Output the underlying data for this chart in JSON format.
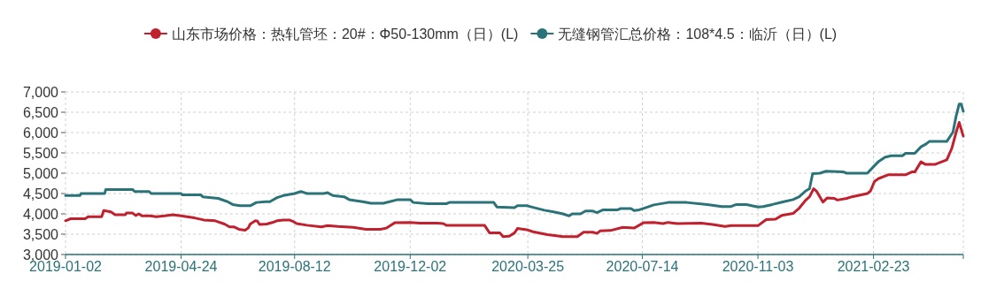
{
  "chart_data": {
    "type": "line",
    "legend": "top",
    "grid": true,
    "line_style": "solid",
    "xlim": [
      "2019-01-02",
      "2021-05-21"
    ],
    "xticks": [
      {
        "value": "2019-01-02",
        "label": "2019-01-02"
      },
      {
        "value": "2019-04-24",
        "label": "2019-04-24"
      },
      {
        "value": "2019-08-12",
        "label": "2019-08-12"
      },
      {
        "value": "2019-12-02",
        "label": "2019-12-02"
      },
      {
        "value": "2020-03-25",
        "label": "2020-03-25"
      },
      {
        "value": "2020-07-14",
        "label": "2020-07-14"
      },
      {
        "value": "2020-11-03",
        "label": "2020-11-03"
      },
      {
        "value": "2021-02-23",
        "label": "2021-02-23"
      }
    ],
    "ylim": [
      3000,
      7000
    ],
    "yticks": [
      {
        "value": 3000,
        "label": "3,000"
      },
      {
        "value": 3500,
        "label": "3,500"
      },
      {
        "value": 4000,
        "label": "4,000"
      },
      {
        "value": 4500,
        "label": "4,500"
      },
      {
        "value": 5000,
        "label": "5,000"
      },
      {
        "value": 5500,
        "label": "5,500"
      },
      {
        "value": 6000,
        "label": "6,000"
      },
      {
        "value": 6500,
        "label": "6,500"
      },
      {
        "value": 7000,
        "label": "7,000"
      }
    ],
    "series": [
      {
        "name": "山东市场价格：热轧管坯：20#：Φ50-130mm（日）(L)",
        "color": "#c0212e",
        "x": [
          "2019-01-02",
          "2019-01-07",
          "2019-01-21",
          "2019-01-24",
          "2019-02-06",
          "2019-02-08",
          "2019-02-15",
          "2019-02-19",
          "2019-03-01",
          "2019-03-02",
          "2019-03-08",
          "2019-03-11",
          "2019-03-14",
          "2019-03-17",
          "2019-03-25",
          "2019-03-31",
          "2019-04-08",
          "2019-04-16",
          "2019-04-24",
          "2019-05-07",
          "2019-05-16",
          "2019-05-27",
          "2019-06-05",
          "2019-06-10",
          "2019-06-14",
          "2019-06-19",
          "2019-06-25",
          "2019-06-28",
          "2019-06-30",
          "2019-07-05",
          "2019-07-07",
          "2019-07-09",
          "2019-07-16",
          "2019-07-23",
          "2019-07-26",
          "2019-08-01",
          "2019-08-07",
          "2019-08-10",
          "2019-08-14",
          "2019-08-24",
          "2019-09-07",
          "2019-09-13",
          "2019-09-23",
          "2019-10-08",
          "2019-10-20",
          "2019-11-03",
          "2019-11-09",
          "2019-11-17",
          "2019-12-02",
          "2019-12-11",
          "2019-12-28",
          "2020-01-03",
          "2020-01-06",
          "2020-02-12",
          "2020-02-17",
          "2020-02-27",
          "2020-03-01",
          "2020-03-07",
          "2020-03-12",
          "2020-03-15",
          "2020-03-24",
          "2020-03-30",
          "2020-04-13",
          "2020-04-28",
          "2020-05-12",
          "2020-05-18",
          "2020-05-27",
          "2020-05-31",
          "2020-06-03",
          "2020-06-13",
          "2020-06-25",
          "2020-07-06",
          "2020-07-15",
          "2020-07-25",
          "2020-08-03",
          "2020-08-08",
          "2020-08-17",
          "2020-09-09",
          "2020-09-20",
          "2020-10-02",
          "2020-10-08",
          "2020-11-03",
          "2020-11-11",
          "2020-11-20",
          "2020-11-26",
          "2020-12-07",
          "2020-12-13",
          "2020-12-19",
          "2020-12-23",
          "2020-12-27",
          "2020-12-30",
          "2021-01-05",
          "2021-01-09",
          "2021-01-16",
          "2021-01-19",
          "2021-01-28",
          "2021-02-02",
          "2021-02-17",
          "2021-02-20",
          "2021-02-24",
          "2021-02-28",
          "2021-03-09",
          "2021-03-26",
          "2021-04-01",
          "2021-04-04",
          "2021-04-10",
          "2021-04-14",
          "2021-04-24",
          "2021-05-05",
          "2021-05-10",
          "2021-05-14",
          "2021-05-17",
          "2021-05-21"
        ],
        "values": [
          3830,
          3880,
          3880,
          3930,
          3930,
          4080,
          4050,
          3980,
          3980,
          4020,
          4020,
          3960,
          4000,
          3950,
          3950,
          3930,
          3950,
          3980,
          3950,
          3900,
          3850,
          3830,
          3750,
          3680,
          3680,
          3620,
          3600,
          3650,
          3750,
          3830,
          3820,
          3740,
          3750,
          3800,
          3830,
          3850,
          3850,
          3820,
          3760,
          3720,
          3680,
          3710,
          3690,
          3670,
          3620,
          3620,
          3650,
          3780,
          3790,
          3770,
          3770,
          3760,
          3720,
          3720,
          3530,
          3530,
          3440,
          3450,
          3530,
          3640,
          3610,
          3560,
          3490,
          3440,
          3440,
          3550,
          3550,
          3520,
          3580,
          3590,
          3670,
          3650,
          3780,
          3790,
          3760,
          3790,
          3760,
          3770,
          3740,
          3690,
          3710,
          3710,
          3860,
          3870,
          3960,
          4010,
          4140,
          4330,
          4420,
          4620,
          4550,
          4290,
          4390,
          4380,
          4340,
          4380,
          4420,
          4500,
          4560,
          4800,
          4870,
          4960,
          4960,
          5030,
          5030,
          5280,
          5220,
          5220,
          5330,
          5620,
          6000,
          6250,
          5910
        ]
      },
      {
        "name": "无缝钢管汇总价格：108*4.5：临沂（日）(L)",
        "color": "#2a7378",
        "x": [
          "2019-01-02",
          "2019-01-16",
          "2019-01-17",
          "2019-02-09",
          "2019-02-10",
          "2019-03-08",
          "2019-03-10",
          "2019-03-24",
          "2019-03-26",
          "2019-04-24",
          "2019-04-25",
          "2019-05-13",
          "2019-05-15",
          "2019-05-30",
          "2019-06-08",
          "2019-06-13",
          "2019-06-20",
          "2019-06-30",
          "2019-07-06",
          "2019-07-15",
          "2019-07-19",
          "2019-07-26",
          "2019-08-01",
          "2019-08-12",
          "2019-08-18",
          "2019-08-24",
          "2019-09-09",
          "2019-09-13",
          "2019-09-18",
          "2019-09-29",
          "2019-10-04",
          "2019-10-17",
          "2019-10-25",
          "2019-11-06",
          "2019-11-20",
          "2019-12-02",
          "2019-12-05",
          "2019-12-19",
          "2020-01-06",
          "2020-01-09",
          "2020-02-21",
          "2020-02-24",
          "2020-03-12",
          "2020-03-15",
          "2020-03-24",
          "2020-03-30",
          "2020-04-10",
          "2020-04-19",
          "2020-04-28",
          "2020-05-04",
          "2020-05-07",
          "2020-05-15",
          "2020-05-20",
          "2020-05-27",
          "2020-05-31",
          "2020-06-06",
          "2020-06-20",
          "2020-06-23",
          "2020-07-03",
          "2020-07-06",
          "2020-07-11",
          "2020-07-17",
          "2020-07-25",
          "2020-08-08",
          "2020-08-26",
          "2020-09-15",
          "2020-09-29",
          "2020-10-08",
          "2020-10-13",
          "2020-10-23",
          "2020-11-03",
          "2020-11-08",
          "2020-11-17",
          "2020-11-28",
          "2020-12-07",
          "2020-12-13",
          "2020-12-19",
          "2020-12-23",
          "2020-12-26",
          "2021-01-02",
          "2021-01-08",
          "2021-01-25",
          "2021-01-28",
          "2021-02-17",
          "2021-02-23",
          "2021-02-28",
          "2021-03-06",
          "2021-03-12",
          "2021-03-23",
          "2021-03-26",
          "2021-04-04",
          "2021-04-10",
          "2021-04-15",
          "2021-04-18",
          "2021-05-05",
          "2021-05-11",
          "2021-05-14",
          "2021-05-17",
          "2021-05-19",
          "2021-05-21"
        ],
        "values": [
          4450,
          4450,
          4500,
          4500,
          4600,
          4600,
          4550,
          4550,
          4500,
          4500,
          4470,
          4470,
          4420,
          4380,
          4300,
          4230,
          4200,
          4200,
          4280,
          4300,
          4300,
          4400,
          4450,
          4500,
          4550,
          4500,
          4500,
          4520,
          4450,
          4420,
          4350,
          4300,
          4260,
          4260,
          4350,
          4350,
          4280,
          4250,
          4250,
          4280,
          4280,
          4170,
          4150,
          4200,
          4200,
          4160,
          4090,
          4050,
          4000,
          3950,
          4000,
          4000,
          4070,
          4070,
          4030,
          4100,
          4100,
          4130,
          4130,
          4080,
          4100,
          4150,
          4220,
          4280,
          4280,
          4230,
          4180,
          4180,
          4230,
          4230,
          4170,
          4180,
          4230,
          4300,
          4350,
          4420,
          4560,
          4620,
          4990,
          5000,
          5050,
          5030,
          5000,
          5000,
          5160,
          5290,
          5390,
          5430,
          5430,
          5490,
          5490,
          5650,
          5720,
          5780,
          5780,
          6010,
          6400,
          6700,
          6700,
          6520
        ]
      }
    ]
  }
}
